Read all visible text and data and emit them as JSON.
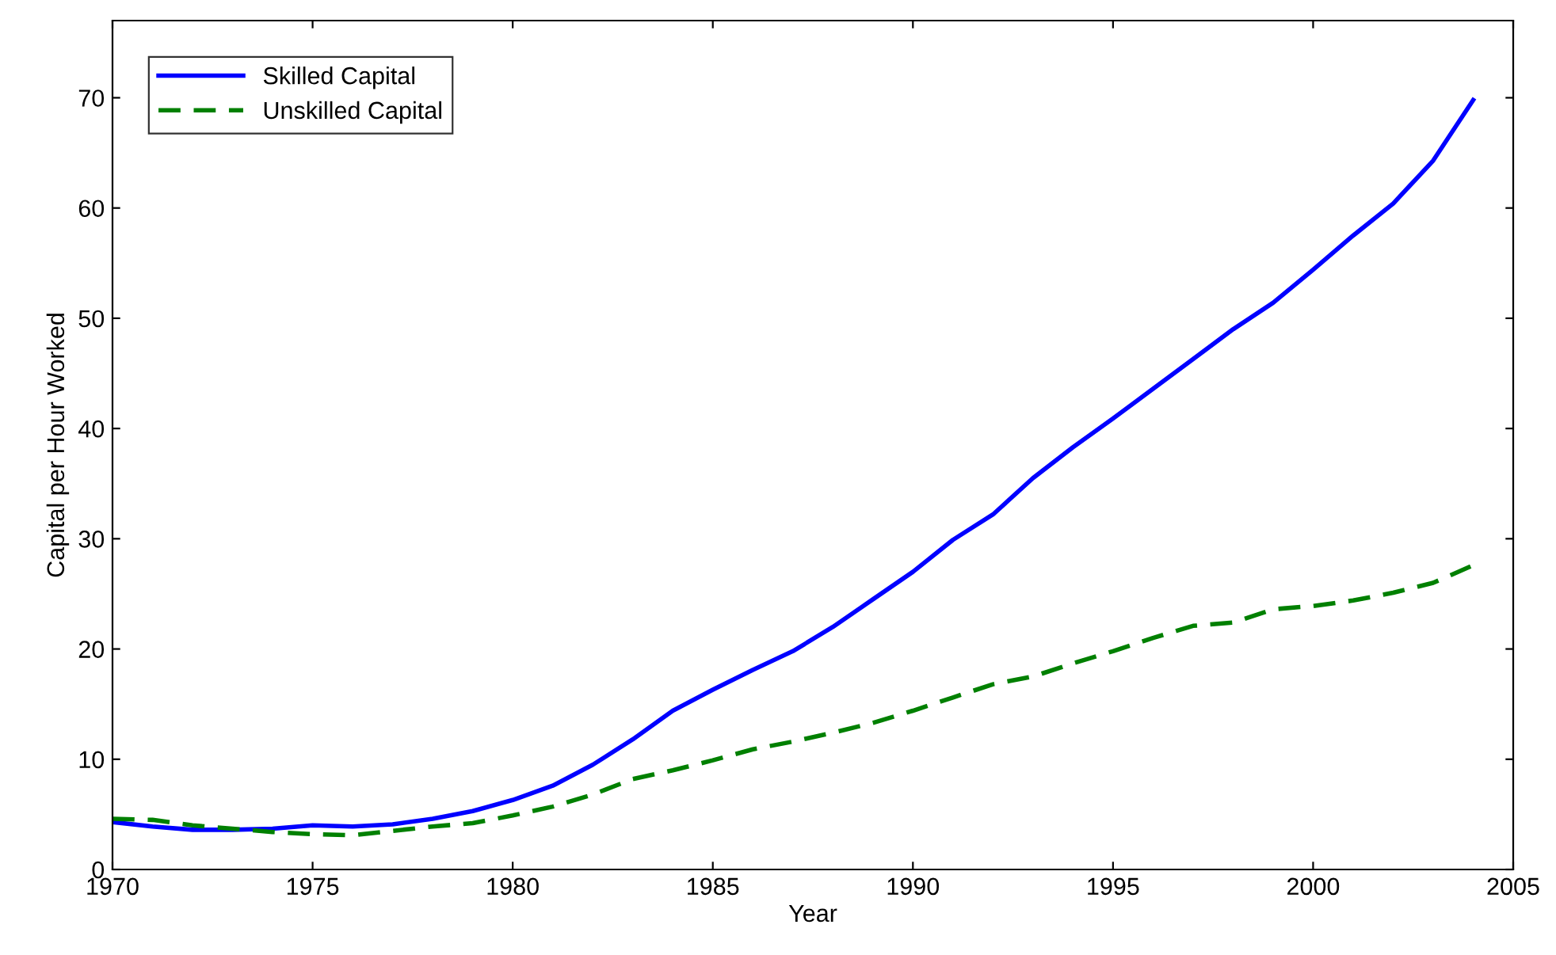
{
  "chart_data": {
    "type": "line",
    "xlabel": "Year",
    "ylabel": "Capital per Hour Worked",
    "x": [
      1970,
      1971,
      1972,
      1973,
      1974,
      1975,
      1976,
      1977,
      1978,
      1979,
      1980,
      1981,
      1982,
      1983,
      1984,
      1985,
      1986,
      1987,
      1988,
      1989,
      1990,
      1991,
      1992,
      1993,
      1994,
      1995,
      1996,
      1997,
      1998,
      1999,
      2000,
      2001,
      2002,
      2003,
      2004
    ],
    "series": [
      {
        "name": "Skilled Capital",
        "color": "#0000ff",
        "line_style": "solid",
        "values": [
          4.3,
          3.9,
          3.6,
          3.6,
          3.7,
          4.0,
          3.9,
          4.1,
          4.6,
          5.3,
          6.3,
          7.6,
          9.5,
          11.8,
          14.4,
          16.3,
          18.1,
          19.8,
          22.0,
          24.5,
          27.0,
          29.9,
          32.2,
          35.5,
          38.3,
          40.9,
          43.6,
          46.3,
          49.0,
          51.4,
          54.4,
          57.5,
          60.4,
          64.3,
          69.8
        ]
      },
      {
        "name": "Unskilled Capital",
        "color": "#008000",
        "line_style": "dashed",
        "values": [
          4.6,
          4.5,
          4.0,
          3.7,
          3.4,
          3.2,
          3.1,
          3.5,
          3.9,
          4.2,
          4.9,
          5.7,
          6.8,
          8.2,
          9.0,
          9.9,
          10.9,
          11.6,
          12.4,
          13.3,
          14.4,
          15.6,
          16.8,
          17.5,
          18.7,
          19.8,
          21.0,
          22.1,
          22.4,
          23.6,
          23.9,
          24.4,
          25.1,
          26.0,
          27.6
        ]
      }
    ],
    "xlim": [
      1970,
      2005
    ],
    "xticks": [
      1970,
      1975,
      1980,
      1985,
      1990,
      1995,
      2000,
      2005
    ],
    "ylim": [
      0,
      77
    ],
    "yticks": [
      0,
      10,
      20,
      30,
      40,
      50,
      60,
      70
    ],
    "grid": false,
    "legend": "top left",
    "marker": "none"
  }
}
